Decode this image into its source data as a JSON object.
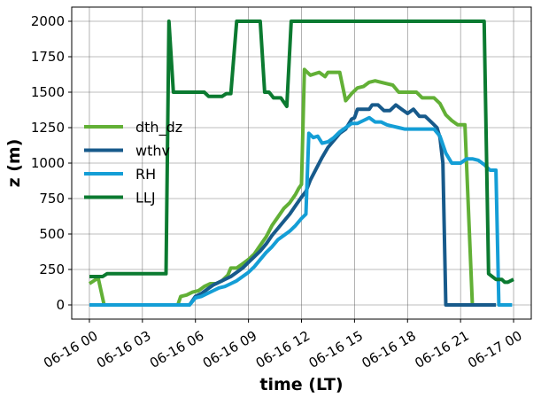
{
  "chart_data": {
    "type": "line",
    "xlabel": "time (LT)",
    "ylabel": "z (m)",
    "ylim": [
      -100,
      2100
    ],
    "xlim": [
      "06-16 -01:00",
      "06-17 01:00"
    ],
    "grid": true,
    "legend_placement": "center-left",
    "x_ticks": [
      "06-16 00",
      "06-16 03",
      "06-16 06",
      "06-16 09",
      "06-16 12",
      "06-16 15",
      "06-16 18",
      "06-16 21",
      "06-17 00"
    ],
    "y_ticks": [
      "0",
      "250",
      "500",
      "750",
      "1000",
      "1250",
      "1500",
      "1750",
      "2000"
    ],
    "series": [
      {
        "name": "dth_dz",
        "color": "#62b036",
        "points": [
          [
            "06-16 00:00",
            150
          ],
          [
            "06-16 00:30",
            190
          ],
          [
            "06-16 00:50",
            0
          ],
          [
            "06-16 05:00",
            0
          ],
          [
            "06-16 05:10",
            60
          ],
          [
            "06-16 05:30",
            70
          ],
          [
            "06-16 05:50",
            90
          ],
          [
            "06-16 06:10",
            100
          ],
          [
            "06-16 06:30",
            130
          ],
          [
            "06-16 06:50",
            150
          ],
          [
            "06-16 07:10",
            150
          ],
          [
            "06-16 07:30",
            170
          ],
          [
            "06-16 07:50",
            210
          ],
          [
            "06-16 08:00",
            260
          ],
          [
            "06-16 08:20",
            260
          ],
          [
            "06-16 08:40",
            290
          ],
          [
            "06-16 09:00",
            320
          ],
          [
            "06-16 09:20",
            360
          ],
          [
            "06-16 09:40",
            420
          ],
          [
            "06-16 10:00",
            480
          ],
          [
            "06-16 10:20",
            560
          ],
          [
            "06-16 10:40",
            620
          ],
          [
            "06-16 11:00",
            680
          ],
          [
            "06-16 11:20",
            720
          ],
          [
            "06-16 11:40",
            780
          ],
          [
            "06-16 11:50",
            820
          ],
          [
            "06-16 12:00",
            850
          ],
          [
            "06-16 12:10",
            1660
          ],
          [
            "06-16 12:30",
            1620
          ],
          [
            "06-16 13:00",
            1640
          ],
          [
            "06-16 13:20",
            1610
          ],
          [
            "06-16 13:30",
            1640
          ],
          [
            "06-16 14:10",
            1640
          ],
          [
            "06-16 14:30",
            1440
          ],
          [
            "06-16 14:50",
            1490
          ],
          [
            "06-16 15:10",
            1530
          ],
          [
            "06-16 15:30",
            1540
          ],
          [
            "06-16 15:50",
            1570
          ],
          [
            "06-16 16:10",
            1580
          ],
          [
            "06-16 16:30",
            1570
          ],
          [
            "06-16 16:50",
            1560
          ],
          [
            "06-16 17:10",
            1550
          ],
          [
            "06-16 17:30",
            1500
          ],
          [
            "06-16 18:30",
            1500
          ],
          [
            "06-16 18:50",
            1460
          ],
          [
            "06-16 19:30",
            1460
          ],
          [
            "06-16 19:50",
            1420
          ],
          [
            "06-16 20:10",
            1340
          ],
          [
            "06-16 20:30",
            1300
          ],
          [
            "06-16 20:50",
            1270
          ],
          [
            "06-16 21:15",
            1270
          ],
          [
            "06-16 21:40",
            0
          ],
          [
            "06-16 23:00",
            0
          ]
        ]
      },
      {
        "name": "wthv",
        "color": "#175a8b",
        "points": [
          [
            "06-16 00:00",
            0
          ],
          [
            "06-16 05:40",
            0
          ],
          [
            "06-16 06:00",
            60
          ],
          [
            "06-16 06:20",
            80
          ],
          [
            "06-16 06:40",
            110
          ],
          [
            "06-16 07:00",
            140
          ],
          [
            "06-16 07:20",
            160
          ],
          [
            "06-16 07:40",
            180
          ],
          [
            "06-16 08:00",
            200
          ],
          [
            "06-16 08:20",
            230
          ],
          [
            "06-16 08:40",
            260
          ],
          [
            "06-16 09:00",
            300
          ],
          [
            "06-16 09:20",
            340
          ],
          [
            "06-16 09:40",
            380
          ],
          [
            "06-16 10:00",
            430
          ],
          [
            "06-16 10:20",
            490
          ],
          [
            "06-16 10:40",
            540
          ],
          [
            "06-16 11:00",
            590
          ],
          [
            "06-16 11:20",
            640
          ],
          [
            "06-16 11:40",
            700
          ],
          [
            "06-16 12:00",
            760
          ],
          [
            "06-16 12:15",
            800
          ],
          [
            "06-16 12:30",
            880
          ],
          [
            "06-16 12:50",
            960
          ],
          [
            "06-16 13:10",
            1040
          ],
          [
            "06-16 13:30",
            1110
          ],
          [
            "06-16 13:50",
            1160
          ],
          [
            "06-16 14:10",
            1210
          ],
          [
            "06-16 14:30",
            1240
          ],
          [
            "06-16 14:50",
            1310
          ],
          [
            "06-16 15:00",
            1320
          ],
          [
            "06-16 15:10",
            1380
          ],
          [
            "06-16 15:50",
            1380
          ],
          [
            "06-16 16:00",
            1410
          ],
          [
            "06-16 16:20",
            1410
          ],
          [
            "06-16 16:40",
            1370
          ],
          [
            "06-16 17:00",
            1370
          ],
          [
            "06-16 17:20",
            1410
          ],
          [
            "06-16 17:40",
            1380
          ],
          [
            "06-16 18:00",
            1350
          ],
          [
            "06-16 18:20",
            1380
          ],
          [
            "06-16 18:40",
            1330
          ],
          [
            "06-16 19:00",
            1330
          ],
          [
            "06-16 19:20",
            1290
          ],
          [
            "06-16 19:40",
            1250
          ],
          [
            "06-16 19:50",
            1180
          ],
          [
            "06-16 20:00",
            1000
          ],
          [
            "06-16 20:10",
            0
          ],
          [
            "06-16 23:00",
            0
          ]
        ]
      },
      {
        "name": "RH",
        "color": "#149ed6",
        "points": [
          [
            "06-16 00:00",
            0
          ],
          [
            "06-16 05:40",
            0
          ],
          [
            "06-16 06:00",
            50
          ],
          [
            "06-16 06:20",
            60
          ],
          [
            "06-16 06:40",
            80
          ],
          [
            "06-16 07:00",
            100
          ],
          [
            "06-16 07:20",
            120
          ],
          [
            "06-16 07:40",
            130
          ],
          [
            "06-16 08:00",
            150
          ],
          [
            "06-16 08:20",
            170
          ],
          [
            "06-16 08:40",
            200
          ],
          [
            "06-16 09:00",
            230
          ],
          [
            "06-16 09:20",
            270
          ],
          [
            "06-16 09:40",
            320
          ],
          [
            "06-16 10:00",
            370
          ],
          [
            "06-16 10:20",
            410
          ],
          [
            "06-16 10:40",
            460
          ],
          [
            "06-16 11:00",
            490
          ],
          [
            "06-16 11:20",
            520
          ],
          [
            "06-16 11:40",
            560
          ],
          [
            "06-16 12:00",
            610
          ],
          [
            "06-16 12:15",
            640
          ],
          [
            "06-16 12:25",
            1210
          ],
          [
            "06-16 12:40",
            1180
          ],
          [
            "06-16 12:55",
            1190
          ],
          [
            "06-16 13:10",
            1140
          ],
          [
            "06-16 13:30",
            1150
          ],
          [
            "06-16 13:50",
            1180
          ],
          [
            "06-16 14:10",
            1220
          ],
          [
            "06-16 14:30",
            1250
          ],
          [
            "06-16 14:50",
            1280
          ],
          [
            "06-16 15:10",
            1280
          ],
          [
            "06-16 15:30",
            1300
          ],
          [
            "06-16 15:50",
            1320
          ],
          [
            "06-16 16:10",
            1290
          ],
          [
            "06-16 16:30",
            1290
          ],
          [
            "06-16 16:50",
            1270
          ],
          [
            "06-16 17:10",
            1260
          ],
          [
            "06-16 17:30",
            1250
          ],
          [
            "06-16 17:50",
            1240
          ],
          [
            "06-16 19:30",
            1240
          ],
          [
            "06-16 19:50",
            1190
          ],
          [
            "06-16 20:10",
            1070
          ],
          [
            "06-16 20:30",
            1000
          ],
          [
            "06-16 21:00",
            1000
          ],
          [
            "06-16 21:20",
            1030
          ],
          [
            "06-16 21:40",
            1030
          ],
          [
            "06-16 22:00",
            1020
          ],
          [
            "06-16 22:20",
            990
          ],
          [
            "06-16 22:40",
            950
          ],
          [
            "06-16 23:00",
            950
          ],
          [
            "06-16 23:10",
            0
          ],
          [
            "06-16 23:55",
            0
          ]
        ]
      },
      {
        "name": "LLJ",
        "color": "#0b7a30",
        "points": [
          [
            "06-16 00:00",
            200
          ],
          [
            "06-16 00:45",
            200
          ],
          [
            "06-16 01:00",
            220
          ],
          [
            "06-16 04:20",
            220
          ],
          [
            "06-16 04:30",
            2000
          ],
          [
            "06-16 04:45",
            1500
          ],
          [
            "06-16 06:30",
            1500
          ],
          [
            "06-16 06:45",
            1470
          ],
          [
            "06-16 07:30",
            1470
          ],
          [
            "06-16 07:45",
            1490
          ],
          [
            "06-16 08:00",
            1490
          ],
          [
            "06-16 08:20",
            2000
          ],
          [
            "06-16 09:40",
            2000
          ],
          [
            "06-16 09:55",
            1500
          ],
          [
            "06-16 10:10",
            1500
          ],
          [
            "06-16 10:25",
            1460
          ],
          [
            "06-16 10:50",
            1460
          ],
          [
            "06-16 11:10",
            1400
          ],
          [
            "06-16 11:25",
            2000
          ],
          [
            "06-16 22:20",
            2000
          ],
          [
            "06-16 22:35",
            220
          ],
          [
            "06-16 23:00",
            180
          ],
          [
            "06-16 23:20",
            180
          ],
          [
            "06-16 23:30",
            160
          ],
          [
            "06-16 23:40",
            160
          ],
          [
            "06-17 00:00",
            180
          ]
        ]
      }
    ]
  }
}
